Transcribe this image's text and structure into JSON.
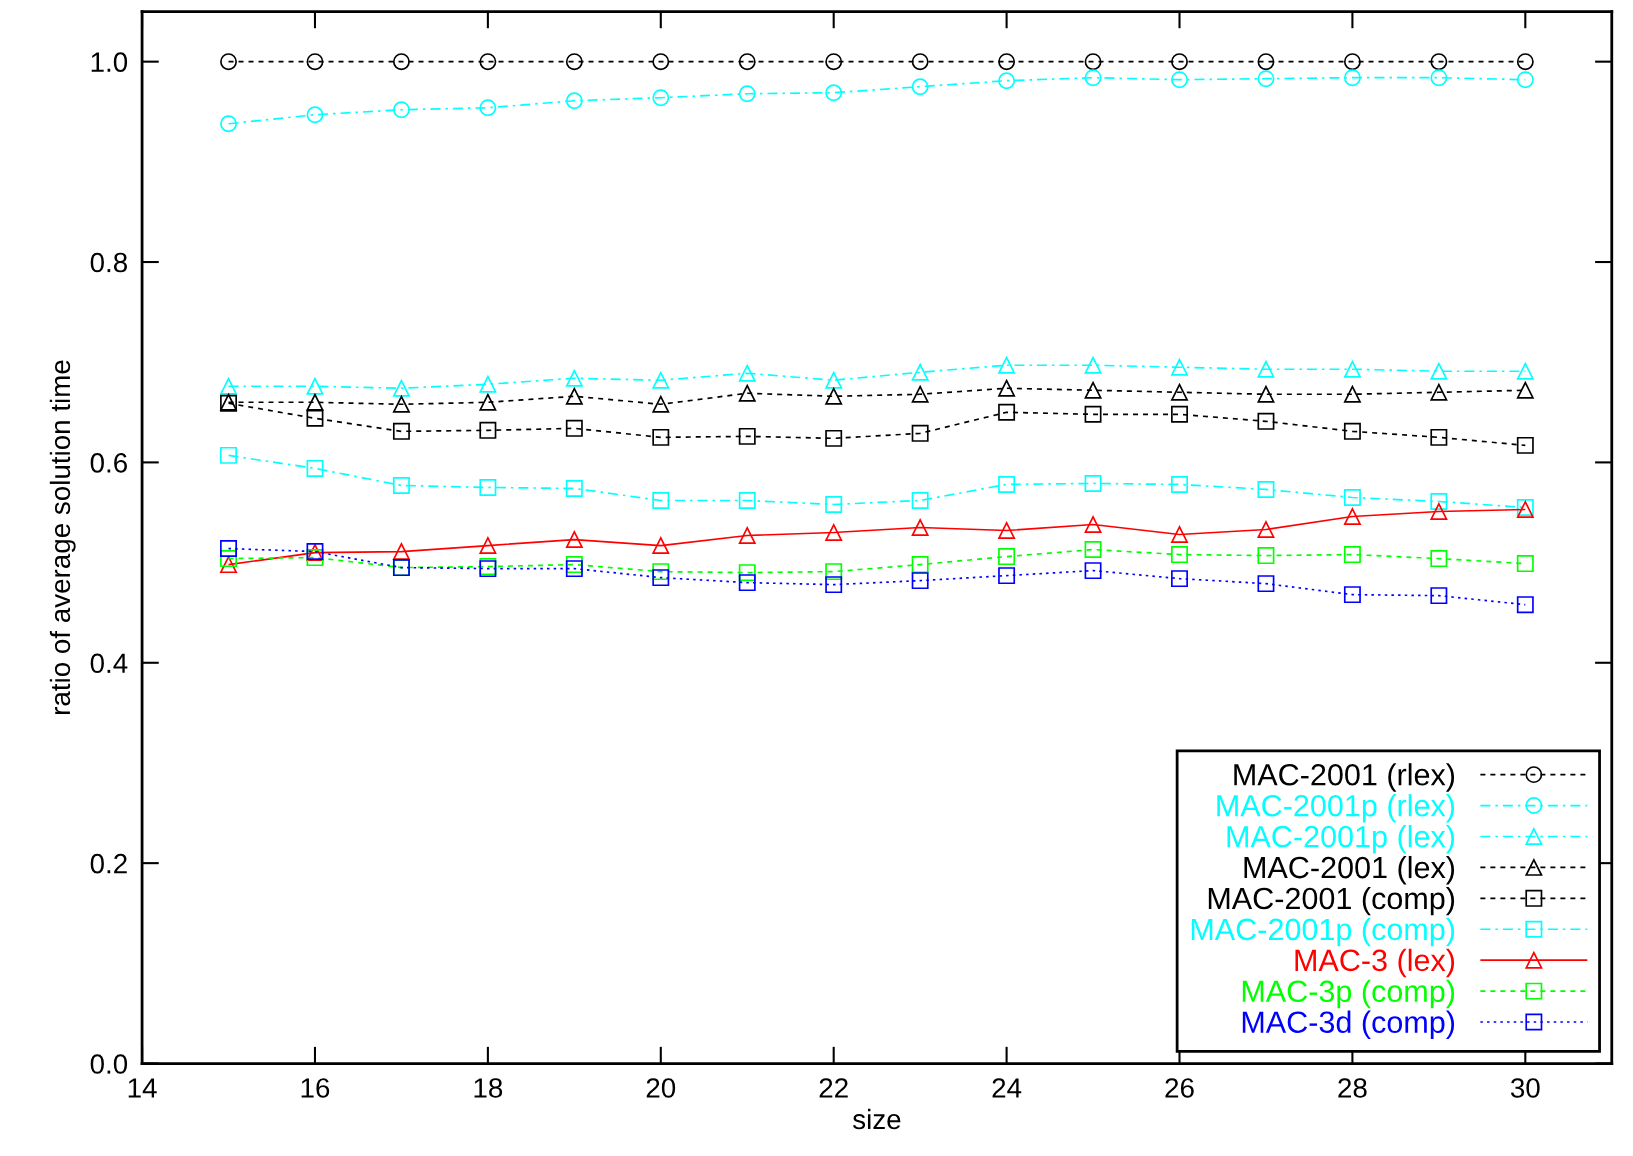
{
  "chart_data": {
    "type": "line",
    "xlabel": "size",
    "ylabel": "ratio of average solution time",
    "x": [
      15,
      16,
      17,
      18,
      19,
      20,
      21,
      22,
      23,
      24,
      25,
      26,
      27,
      28,
      29,
      30
    ],
    "xlim": [
      14,
      31
    ],
    "xticks": [
      14,
      16,
      18,
      20,
      22,
      24,
      26,
      28,
      30
    ],
    "ylim": [
      0,
      1.05
    ],
    "yticks": [
      {
        "value": 0,
        "label": "0.0"
      },
      0.2,
      0.4,
      0.6,
      0.8,
      {
        "value": 1,
        "label": "1.0"
      }
    ],
    "grid": false,
    "legend": "bottom right",
    "series": [
      {
        "name": "MAC-2001 (rlex)",
        "color": "#000000",
        "marker": "circle",
        "line_style": "dashed",
        "values": [
          1,
          1,
          1,
          1,
          1,
          1,
          1,
          1,
          1,
          1,
          1,
          1,
          1,
          1,
          1,
          1
        ]
      },
      {
        "name": "MAC-2001p (rlex)",
        "color": "#00ffff",
        "marker": "circle",
        "line_style": "dashdot",
        "values": [
          0.938,
          0.947,
          0.952,
          0.954,
          0.961,
          0.964,
          0.968,
          0.969,
          0.975,
          0.981,
          0.984,
          0.982,
          0.983,
          0.984,
          0.984,
          0.982
        ]
      },
      {
        "name": "MAC-2001p (lex)",
        "color": "#00ffff",
        "marker": "triangle",
        "line_style": "dashdot",
        "values": [
          0.676,
          0.676,
          0.674,
          0.678,
          0.684,
          0.682,
          0.689,
          0.682,
          0.69,
          0.697,
          0.697,
          0.695,
          0.693,
          0.693,
          0.691,
          0.691
        ]
      },
      {
        "name": "MAC-2001 (lex)",
        "color": "#000000",
        "marker": "triangle",
        "line_style": "dashed",
        "values": [
          0.66,
          0.66,
          0.658,
          0.66,
          0.666,
          0.658,
          0.669,
          0.666,
          0.668,
          0.674,
          0.672,
          0.67,
          0.668,
          0.668,
          0.67,
          0.672
        ]
      },
      {
        "name": "MAC-2001 (comp)",
        "color": "#000000",
        "marker": "square",
        "line_style": "dashed",
        "values": [
          0.659,
          0.644,
          0.631,
          0.632,
          0.634,
          0.625,
          0.626,
          0.624,
          0.629,
          0.65,
          0.648,
          0.648,
          0.641,
          0.631,
          0.625,
          0.617
        ]
      },
      {
        "name": "MAC-2001p (comp)",
        "color": "#00ffff",
        "marker": "square",
        "line_style": "dashdot",
        "values": [
          0.607,
          0.594,
          0.577,
          0.575,
          0.574,
          0.562,
          0.562,
          0.558,
          0.562,
          0.578,
          0.579,
          0.578,
          0.573,
          0.565,
          0.561,
          0.555
        ]
      },
      {
        "name": "MAC-3 (lex)",
        "color": "#ff0000",
        "marker": "triangle",
        "line_style": "solid",
        "values": [
          0.498,
          0.51,
          0.511,
          0.517,
          0.523,
          0.517,
          0.527,
          0.53,
          0.535,
          0.532,
          0.538,
          0.528,
          0.533,
          0.546,
          0.551,
          0.553
        ]
      },
      {
        "name": "MAC-3p (comp)",
        "color": "#00ff00",
        "marker": "square",
        "line_style": "dashed",
        "values": [
          0.504,
          0.505,
          0.495,
          0.496,
          0.498,
          0.491,
          0.49,
          0.491,
          0.498,
          0.506,
          0.513,
          0.508,
          0.507,
          0.508,
          0.504,
          0.499
        ]
      },
      {
        "name": "MAC-3d (comp)",
        "color": "#0000ff",
        "marker": "square",
        "line_style": "dotted",
        "values": [
          0.514,
          0.511,
          0.495,
          0.494,
          0.494,
          0.485,
          0.48,
          0.478,
          0.482,
          0.487,
          0.492,
          0.484,
          0.479,
          0.468,
          0.467,
          0.458
        ]
      }
    ]
  }
}
